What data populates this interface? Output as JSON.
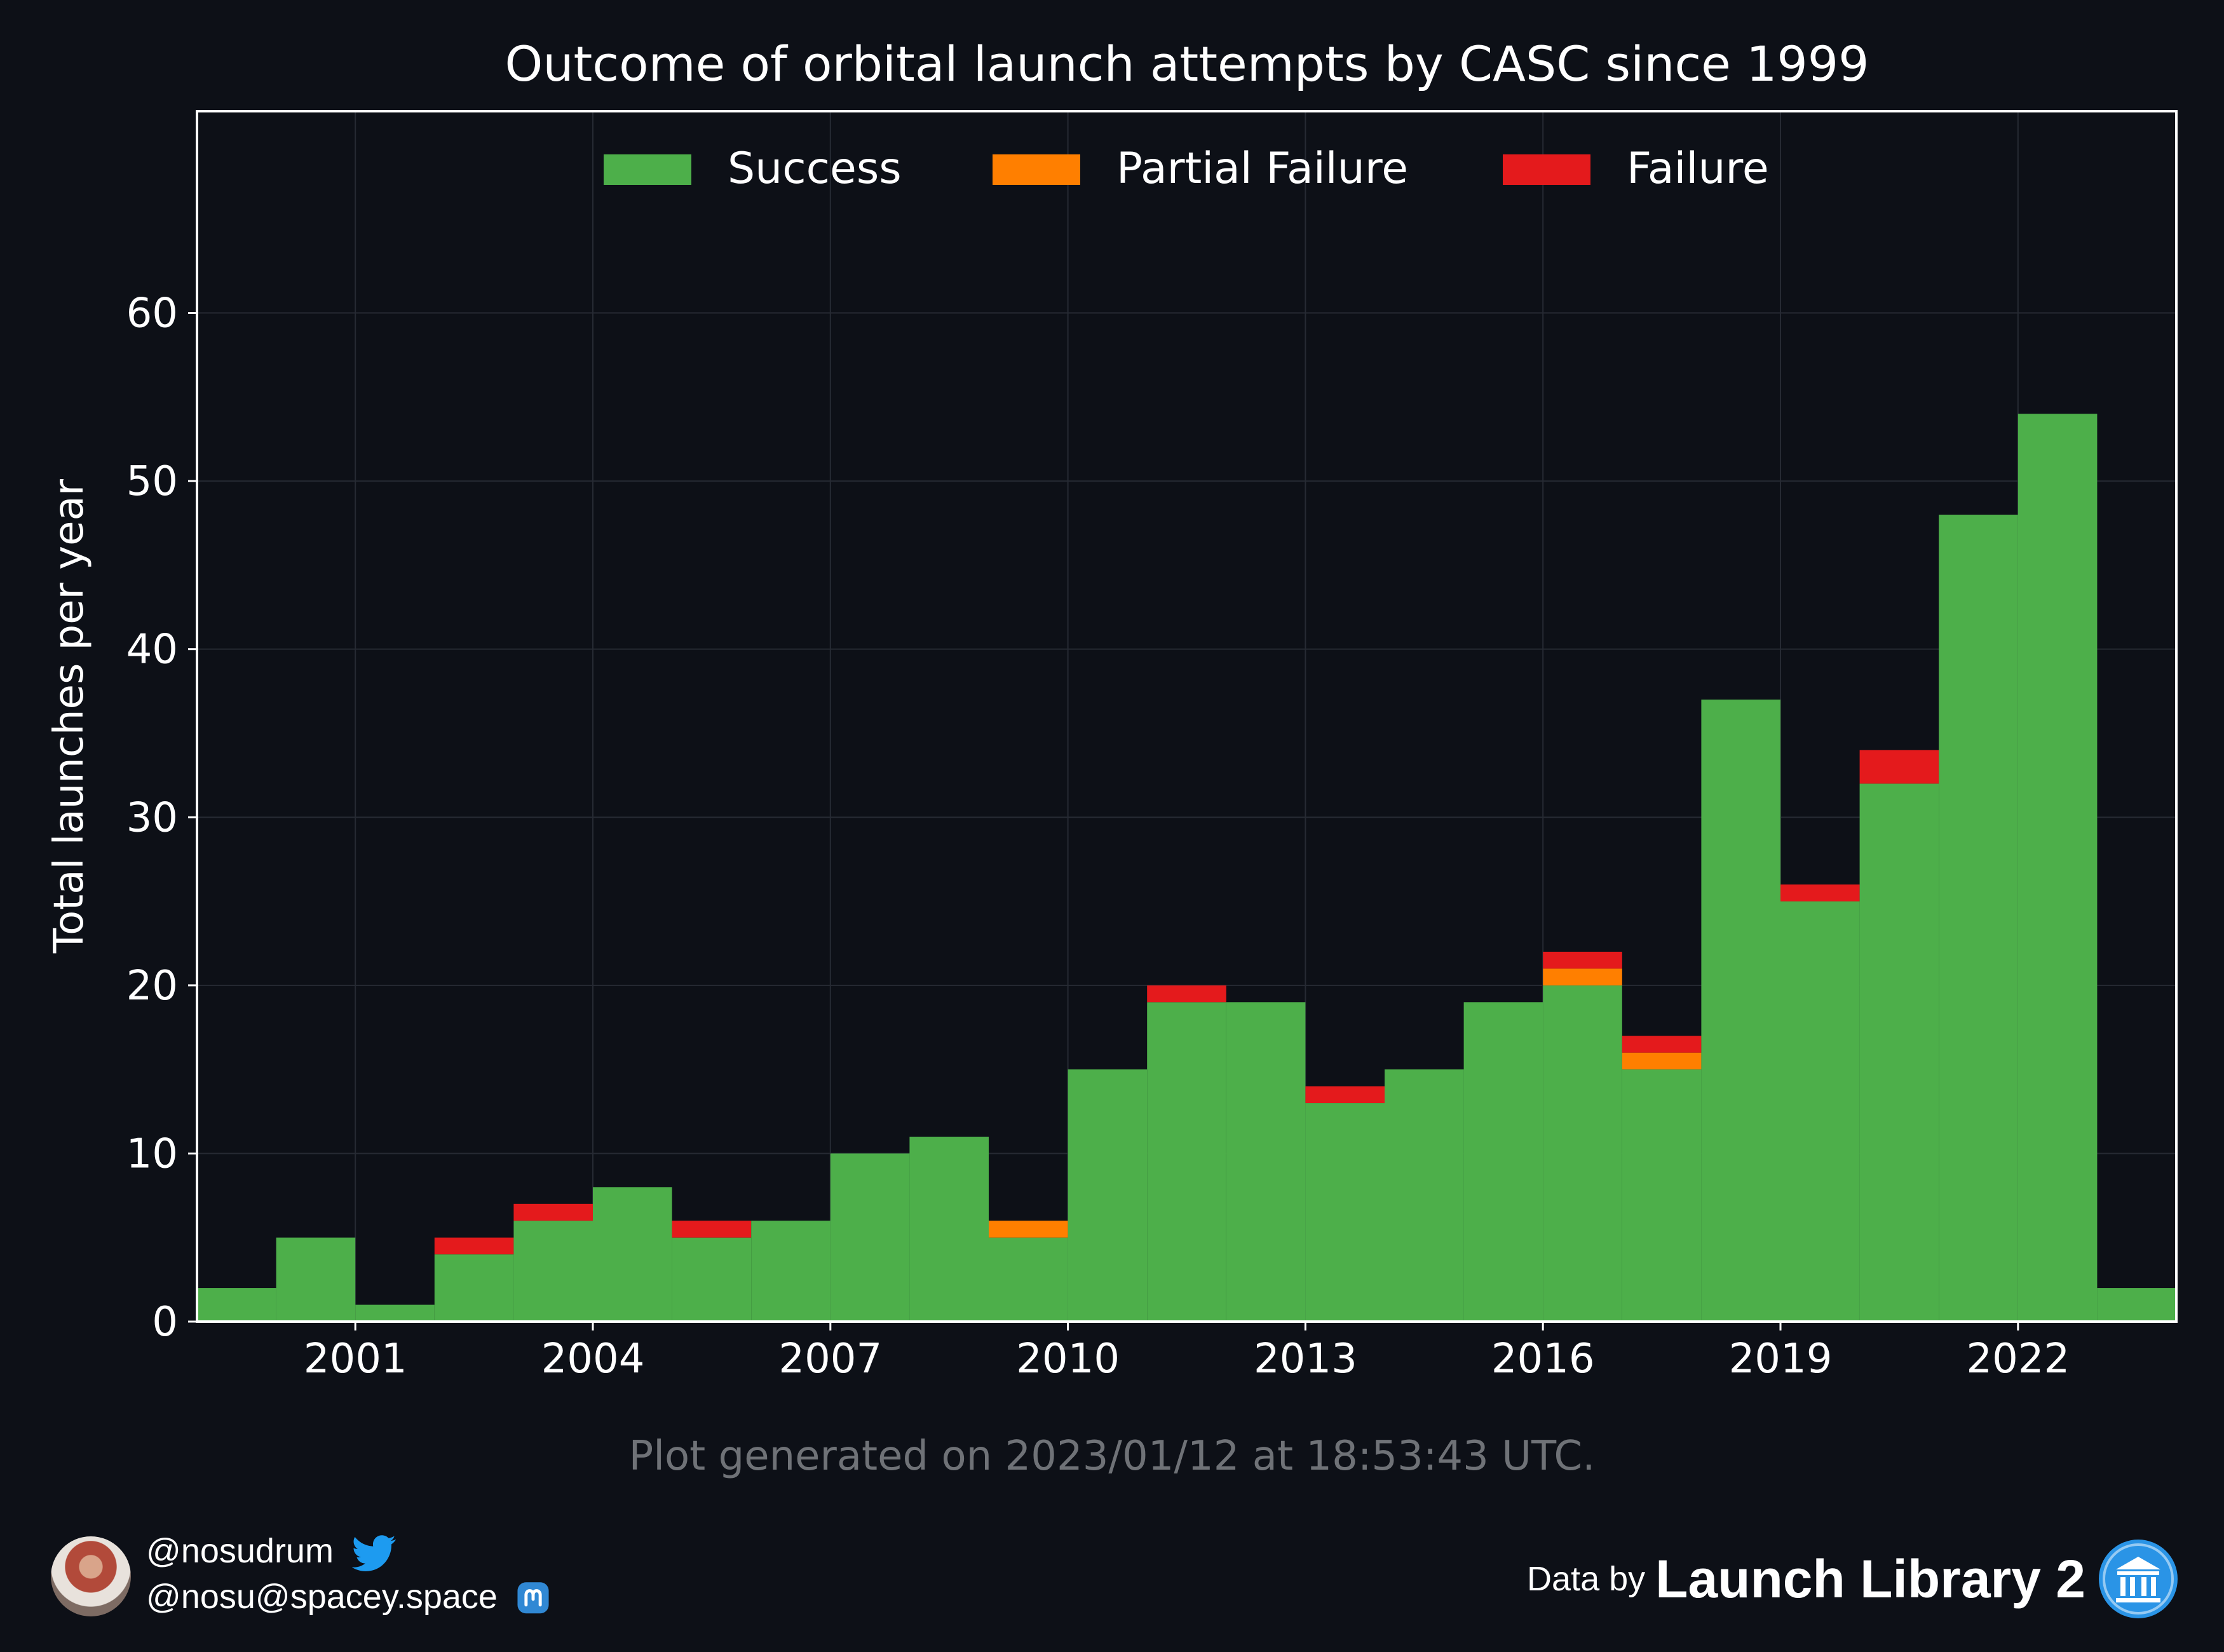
{
  "chart_data": {
    "type": "bar",
    "title": "Outcome of orbital launch attempts by CASC since 1999",
    "xlabel": "",
    "ylabel": "Total launches per year",
    "x": [
      1999,
      2000,
      2001,
      2002,
      2003,
      2004,
      2005,
      2006,
      2007,
      2008,
      2009,
      2010,
      2011,
      2012,
      2013,
      2014,
      2015,
      2016,
      2017,
      2018,
      2019,
      2020,
      2021,
      2022,
      2023
    ],
    "series": [
      {
        "name": "Success",
        "color": "#4daf4a",
        "values": [
          2,
          5,
          1,
          4,
          6,
          8,
          5,
          6,
          10,
          11,
          5,
          15,
          19,
          19,
          13,
          15,
          19,
          20,
          15,
          37,
          25,
          32,
          48,
          54,
          2
        ]
      },
      {
        "name": "Partial Failure",
        "color": "#ff7f00",
        "values": [
          0,
          0,
          0,
          0,
          0,
          0,
          0,
          0,
          0,
          0,
          1,
          0,
          0,
          0,
          0,
          0,
          0,
          1,
          1,
          0,
          0,
          0,
          0,
          0,
          0
        ]
      },
      {
        "name": "Failure",
        "color": "#e41a1c",
        "values": [
          0,
          0,
          0,
          1,
          1,
          0,
          1,
          0,
          0,
          0,
          0,
          0,
          1,
          0,
          1,
          0,
          0,
          1,
          1,
          0,
          1,
          2,
          0,
          0,
          0
        ]
      }
    ],
    "stacked": true,
    "xticks": [
      2001,
      2004,
      2007,
      2010,
      2013,
      2016,
      2019,
      2022
    ],
    "yticks": [
      0,
      10,
      20,
      30,
      40,
      50,
      60
    ],
    "xlim": [
      1999,
      2024
    ],
    "ylim": [
      0,
      72
    ],
    "grid": true,
    "legend_position": "top-center"
  },
  "footer": {
    "generated_note": "Plot generated on 2023/01/12 at 18:53:43 UTC.",
    "twitter_handle": "@nosudrum",
    "mastodon_handle": "@nosu@spacey.space",
    "data_by_label": "Data by",
    "data_source": "Launch Library 2",
    "twitter_icon": "twitter-bird-icon",
    "mastodon_icon": "mastodon-icon",
    "source_icon": "library-building-icon"
  }
}
